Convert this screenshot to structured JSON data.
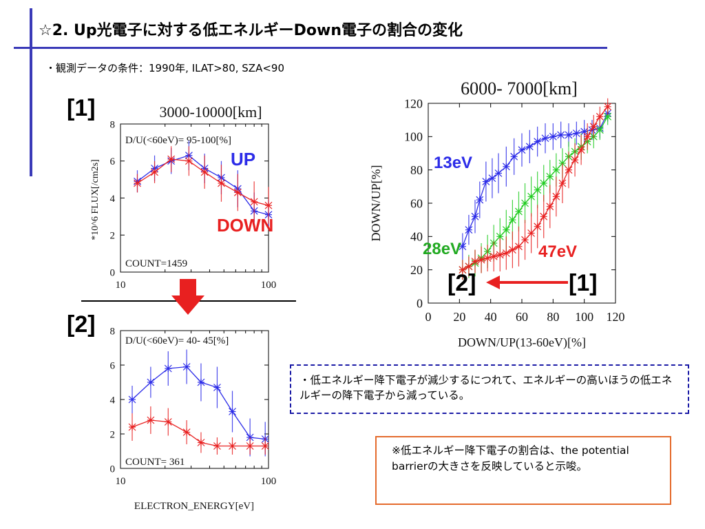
{
  "slide": {
    "title": "☆2. Up光電子に対する低エネルギーDown電子の割合の変化",
    "conditions": "・観測データの条件：1990年, ILAT>80, SZA<90",
    "tag1": "[1]",
    "tag2": "[2]",
    "conclusion": "・低エネルギー降下電子が減少するにつれて、エネルギーの高いほうの低エネルギーの降下電子から減っている。",
    "note": "※低エネルギー降下電子の割合は、the potential barrierの大きさを反映していると示唆。",
    "arrow_from": "[1]",
    "arrow_to": "[2]"
  },
  "colors": {
    "blue": "#2b2be8",
    "red": "#e82020",
    "green": "#22cc22",
    "accent": "#3a3ab8",
    "arrow_red": "#e82020",
    "note_border": "#e46a2c"
  },
  "chart_data": [
    {
      "type": "line",
      "title": "3000-10000[km]",
      "annotation": "D/U(<60eV)= 95-100[%]",
      "count": "COUNT=1459",
      "ylabel": "*10^6 FLUX[/cm2s]",
      "xlabel": "",
      "xscale": "log",
      "xlim": [
        10,
        100
      ],
      "ylim": [
        0,
        8
      ],
      "yticks": [
        0,
        2,
        4,
        6,
        8
      ],
      "xticks": [
        10,
        100
      ],
      "series_labels": {
        "up": "UP",
        "down": "DOWN"
      },
      "series": [
        {
          "name": "UP",
          "color": "blue",
          "x": [
            13,
            17,
            22,
            29,
            37,
            48,
            62,
            80,
            100
          ],
          "y": [
            4.9,
            5.6,
            6.0,
            6.3,
            5.6,
            5.1,
            4.5,
            3.3,
            3.1
          ],
          "err": [
            0.6,
            0.7,
            0.7,
            0.8,
            0.8,
            0.9,
            1.0,
            1.0,
            0.8
          ]
        },
        {
          "name": "DOWN",
          "color": "red",
          "x": [
            13,
            17,
            22,
            29,
            37,
            48,
            62,
            80,
            100
          ],
          "y": [
            4.8,
            5.4,
            6.1,
            6.0,
            5.4,
            4.8,
            4.3,
            3.8,
            3.6
          ],
          "err": [
            0.5,
            0.6,
            0.7,
            0.8,
            0.9,
            1.0,
            1.0,
            1.1,
            1.0
          ]
        }
      ]
    },
    {
      "type": "line",
      "title": "",
      "annotation": "D/U(<60eV)= 40- 45[%]",
      "count": "COUNT= 361",
      "ylabel": "",
      "xlabel": "ELECTRON_ENERGY[eV]",
      "xscale": "log",
      "xlim": [
        10,
        100
      ],
      "ylim": [
        0,
        8
      ],
      "yticks": [
        0,
        2,
        4,
        6,
        8
      ],
      "xticks": [
        10,
        100
      ],
      "series": [
        {
          "name": "",
          "color": "blue",
          "x": [
            12,
            16,
            21,
            28,
            35,
            45,
            57,
            75,
            95
          ],
          "y": [
            4.0,
            5.0,
            5.8,
            5.9,
            5.0,
            4.7,
            3.3,
            1.8,
            1.7
          ],
          "err": [
            0.8,
            0.9,
            1.0,
            1.0,
            1.1,
            1.2,
            1.2,
            1.1,
            1.0
          ]
        },
        {
          "name": "",
          "color": "red",
          "x": [
            12,
            16,
            21,
            28,
            35,
            45,
            57,
            75,
            95
          ],
          "y": [
            2.4,
            2.8,
            2.7,
            2.1,
            1.5,
            1.3,
            1.3,
            1.3,
            1.3
          ],
          "err": [
            0.8,
            0.8,
            0.8,
            0.7,
            0.6,
            0.5,
            0.5,
            0.5,
            0.5
          ]
        }
      ]
    },
    {
      "type": "line",
      "title": "6000- 7000[km]",
      "xlabel": "DOWN/UP(13-60eV)[%]",
      "ylabel": "DOWN/UP[%]",
      "xlim": [
        0,
        120
      ],
      "ylim": [
        0,
        120
      ],
      "xticks": [
        0,
        20,
        40,
        60,
        80,
        100,
        120
      ],
      "yticks": [
        0,
        20,
        40,
        60,
        80,
        100,
        120
      ],
      "series": [
        {
          "name": "13eV",
          "color": "blue",
          "x": [
            22,
            26,
            30,
            33,
            37,
            41,
            45,
            50,
            55,
            60,
            65,
            70,
            75,
            80,
            85,
            90,
            95,
            100,
            105,
            110,
            115
          ],
          "y": [
            34,
            44,
            52,
            62,
            73,
            75,
            78,
            82,
            88,
            92,
            94,
            97,
            99,
            100,
            101,
            101,
            102,
            103,
            104,
            105,
            114
          ],
          "err": [
            8,
            9,
            10,
            11,
            12,
            12,
            12,
            12,
            11,
            10,
            10,
            9,
            9,
            8,
            8,
            7,
            7,
            7,
            6,
            6,
            5
          ]
        },
        {
          "name": "28eV",
          "color": "green",
          "x": [
            22,
            26,
            30,
            34,
            38,
            42,
            46,
            50,
            54,
            58,
            62,
            66,
            70,
            74,
            78,
            82,
            86,
            90,
            94,
            98,
            102,
            106,
            110,
            115
          ],
          "y": [
            20,
            22,
            24,
            27,
            31,
            36,
            40,
            44,
            50,
            55,
            60,
            64,
            68,
            72,
            76,
            80,
            84,
            88,
            91,
            94,
            97,
            100,
            104,
            112
          ],
          "err": [
            6,
            7,
            8,
            9,
            10,
            11,
            11,
            12,
            12,
            12,
            12,
            12,
            11,
            11,
            10,
            10,
            9,
            9,
            8,
            8,
            7,
            7,
            6,
            5
          ]
        },
        {
          "name": "47eV",
          "color": "red",
          "x": [
            22,
            26,
            30,
            34,
            38,
            42,
            46,
            50,
            54,
            58,
            62,
            66,
            70,
            74,
            78,
            82,
            86,
            90,
            94,
            98,
            102,
            106,
            110,
            115
          ],
          "y": [
            20,
            22,
            25,
            26,
            27,
            28,
            29,
            30,
            32,
            34,
            38,
            42,
            46,
            52,
            58,
            64,
            72,
            80,
            86,
            92,
            100,
            106,
            112,
            118
          ],
          "err": [
            6,
            6,
            7,
            8,
            8,
            9,
            10,
            10,
            11,
            12,
            12,
            12,
            13,
            13,
            13,
            12,
            12,
            11,
            10,
            9,
            8,
            7,
            6,
            5
          ]
        }
      ]
    }
  ],
  "plot_labels": {
    "up": "UP",
    "down": "DOWN",
    "e13": "13eV",
    "e28": "28eV",
    "e47": "47eV"
  }
}
